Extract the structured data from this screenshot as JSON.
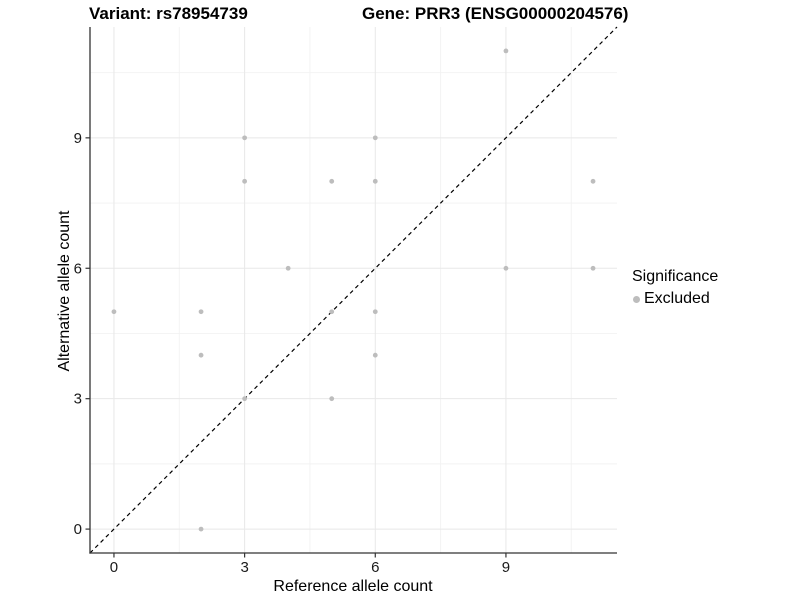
{
  "title": {
    "variant": "Variant: rs78954739",
    "gene": "Gene: PRR3 (ENSG00000204576)"
  },
  "axes": {
    "x": {
      "label": "Reference allele count"
    },
    "y": {
      "label": "Alternative allele count"
    }
  },
  "legend": {
    "title": "Significance",
    "items": [
      {
        "label": "Excluded",
        "color": "#bdbdbd"
      }
    ]
  },
  "chart_data": {
    "type": "scatter",
    "title": "Variant: rs78954739 | Gene: PRR3 (ENSG00000204576)",
    "xlabel": "Reference allele count",
    "ylabel": "Alternative allele count",
    "xlim": [
      -0.55,
      11.55
    ],
    "ylim": [
      -0.55,
      11.55
    ],
    "x_ticks": [
      0,
      3,
      6,
      9
    ],
    "y_ticks": [
      0,
      3,
      6,
      9
    ],
    "x_minor_ticks": [
      1.5,
      4.5,
      7.5,
      10.5
    ],
    "y_minor_ticks": [
      1.5,
      4.5,
      7.5,
      10.5
    ],
    "grid": true,
    "legend_position": "right",
    "series": [
      {
        "name": "Excluded",
        "color": "#bdbdbd",
        "points": [
          [
            0,
            5
          ],
          [
            2,
            0
          ],
          [
            2,
            4
          ],
          [
            2,
            5
          ],
          [
            3,
            3
          ],
          [
            3,
            8
          ],
          [
            3,
            9
          ],
          [
            4,
            6
          ],
          [
            5,
            3
          ],
          [
            5,
            5
          ],
          [
            5,
            8
          ],
          [
            6,
            4
          ],
          [
            6,
            5
          ],
          [
            6,
            8
          ],
          [
            6,
            9
          ],
          [
            9,
            6
          ],
          [
            9,
            11
          ],
          [
            11,
            6
          ],
          [
            11,
            8
          ]
        ]
      }
    ],
    "reference_line": {
      "type": "identity y=x",
      "style": "dashed",
      "color": "#000000"
    }
  },
  "style_colors": {
    "point": "#bdbdbd",
    "axis_line": "#333333",
    "major_grid": "#e8e8e8",
    "minor_grid": "#f2f2f2",
    "tick_text": "#1a1a1a",
    "dashed_line": "#000000"
  }
}
